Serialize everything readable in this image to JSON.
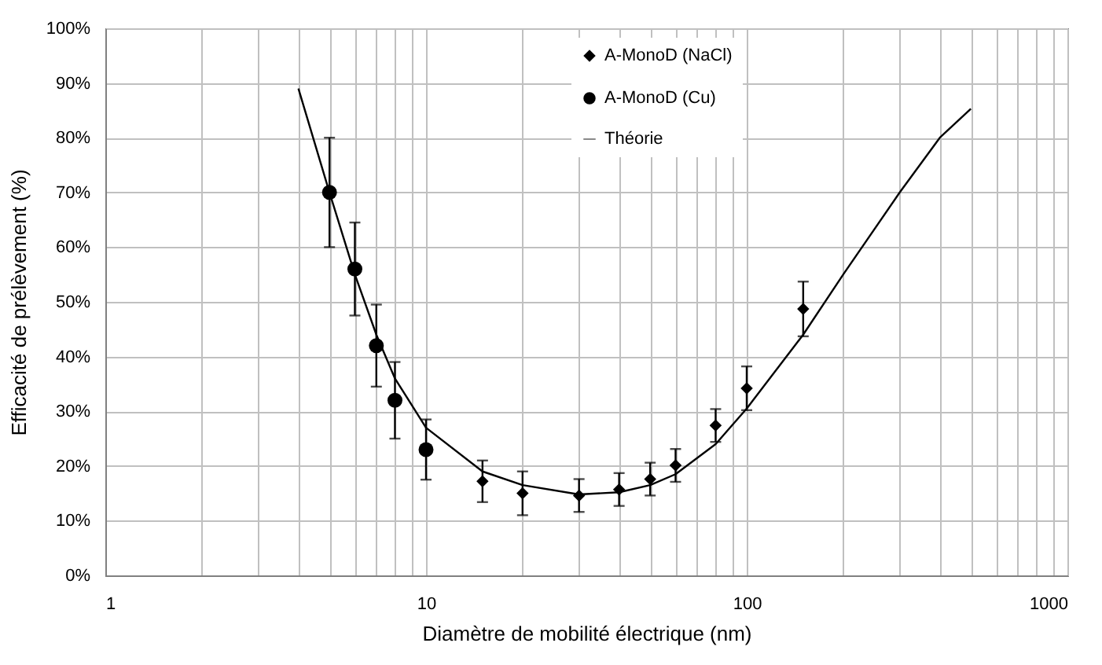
{
  "chart_data": {
    "type": "scatter",
    "xlabel": "Diamètre de mobilité électrique (nm)",
    "ylabel": "Efficacité de prélèvement  (%)",
    "log": "x",
    "grid": true,
    "legend": "top",
    "xlim": [
      1,
      1000
    ],
    "xticks": [
      1,
      {
        "value": 2,
        "label": null
      },
      {
        "value": 3,
        "label": null
      },
      {
        "value": 4,
        "label": null
      },
      {
        "value": 5,
        "label": null
      },
      {
        "value": 6,
        "label": null
      },
      {
        "value": 7,
        "label": null
      },
      {
        "value": 8,
        "label": null
      },
      {
        "value": 9,
        "label": null
      },
      10,
      {
        "value": 20,
        "label": null
      },
      {
        "value": 30,
        "label": null
      },
      {
        "value": 40,
        "label": null
      },
      {
        "value": 50,
        "label": null
      },
      {
        "value": 60,
        "label": null
      },
      {
        "value": 70,
        "label": null
      },
      {
        "value": 80,
        "label": null
      },
      {
        "value": 90,
        "label": null
      },
      100,
      {
        "value": 200,
        "label": null
      },
      {
        "value": 300,
        "label": null
      },
      {
        "value": 400,
        "label": null
      },
      {
        "value": 500,
        "label": null
      },
      {
        "value": 600,
        "label": null
      },
      {
        "value": 700,
        "label": null
      },
      {
        "value": 800,
        "label": null
      },
      {
        "value": 900,
        "label": null
      },
      1000
    ],
    "ylim": [
      0,
      100
    ],
    "yticks": [
      {
        "value": 0,
        "label": "0%"
      },
      {
        "value": 10,
        "label": "10%"
      },
      {
        "value": 20,
        "label": "20%"
      },
      {
        "value": 30,
        "label": "30%"
      },
      {
        "value": 40,
        "label": "40%"
      },
      {
        "value": 50,
        "label": "50%"
      },
      {
        "value": 60,
        "label": "60%"
      },
      {
        "value": 70,
        "label": "70%"
      },
      {
        "value": 80,
        "label": "80%"
      },
      {
        "value": 90,
        "label": "90%"
      },
      {
        "value": 100,
        "label": "100%"
      }
    ],
    "series": [
      {
        "name": "A-MonoD (NaCl)",
        "type": "scatter",
        "marker": "diamond",
        "color": "#000000",
        "x": [
          15,
          20,
          30,
          40,
          50,
          60,
          80,
          100,
          150
        ],
        "values": [
          17.2,
          15,
          14.6,
          15.7,
          17.6,
          20.1,
          27.4,
          34.2,
          48.7
        ],
        "errors": [
          3.8,
          4,
          3,
          3,
          3,
          3,
          3,
          4,
          5
        ]
      },
      {
        "name": "A-MonoD (Cu)",
        "type": "scatter",
        "marker": "circle",
        "color": "#000000",
        "x": [
          5,
          6,
          7,
          8,
          10
        ],
        "values": [
          70,
          56,
          42,
          32,
          23
        ],
        "errors": [
          10,
          8.5,
          7.5,
          7,
          5.5
        ]
      },
      {
        "name": "Théorie",
        "type": "line",
        "marker": "none",
        "line_style": "solid",
        "color": "#000000",
        "x": [
          4,
          5,
          6,
          7,
          8,
          10,
          15,
          20,
          30,
          40,
          50,
          60,
          80,
          100,
          150,
          200,
          300,
          400,
          500
        ],
        "values": [
          89,
          70,
          55,
          44,
          36,
          27,
          19,
          16.5,
          14.8,
          15.2,
          16.5,
          18.5,
          24,
          30.5,
          44,
          55,
          70,
          80,
          85.3
        ]
      }
    ]
  }
}
